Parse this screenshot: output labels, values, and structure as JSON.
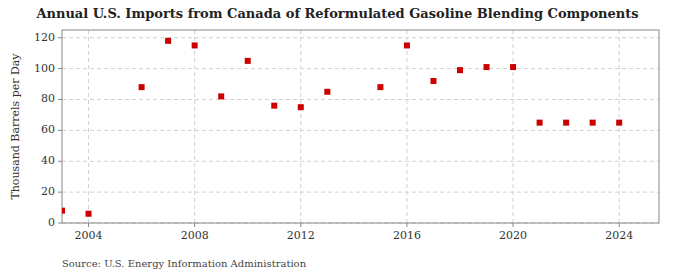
{
  "chart_data": {
    "type": "scatter",
    "title": "Annual U.S. Imports from Canada of Reformulated Gasoline Blending Components",
    "ylabel": "Thousand Barrels per Day",
    "source": "Source: U.S. Energy Information Administration",
    "x": [
      2003,
      2004,
      2006,
      2007,
      2008,
      2009,
      2010,
      2011,
      2012,
      2013,
      2015,
      2016,
      2017,
      2018,
      2019,
      2020,
      2021,
      2022,
      2023,
      2024
    ],
    "values": [
      8,
      6,
      88,
      118,
      115,
      82,
      105,
      76,
      75,
      85,
      88,
      115,
      92,
      99,
      101,
      101,
      65,
      65,
      65,
      65
    ],
    "color": "#cc0000",
    "marker": "square",
    "xlim": [
      2003,
      2025.5
    ],
    "ylim": [
      0,
      125
    ],
    "xticks": [
      2004,
      2008,
      2012,
      2016,
      2020,
      2024
    ],
    "yticks": [
      0,
      20,
      40,
      60,
      80,
      100,
      120
    ],
    "grid": true
  }
}
